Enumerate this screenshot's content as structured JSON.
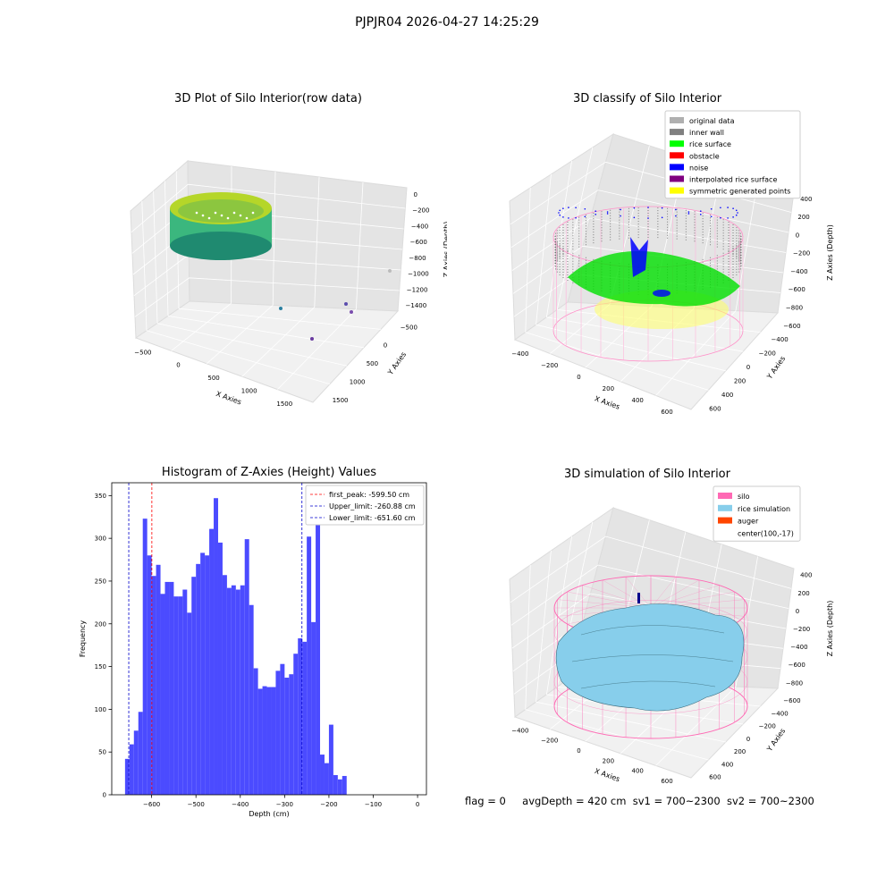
{
  "suptitle": "PJPJR04 2026-04-27 14:25:29",
  "footer": {
    "flag": "flag = 0",
    "avg": "avgDepth = 420 cm",
    "sv1": "sv1 = 700~2300",
    "sv2": "sv2 = 700~2300"
  },
  "colors": {
    "histogram": "#4b4bff",
    "silo": "#ff69b4",
    "rice": "#87ceeb",
    "auger": "#ff4500"
  },
  "panel1": {
    "title": "3D Plot of Silo Interior(row data)",
    "xlabel": "X Axies",
    "ylabel": "Y Axies",
    "zlabel": "Z Axies (Depth)",
    "xticks": [
      "−500",
      "0",
      "500",
      "1000",
      "1500"
    ],
    "yticks": [
      "1500",
      "1000",
      "500",
      "0",
      "−500"
    ],
    "zticks": [
      "0",
      "−200",
      "−400",
      "−600",
      "−800",
      "−1000",
      "−1200",
      "−1400"
    ]
  },
  "panel2": {
    "title": "3D classify of Silo Interior",
    "xlabel": "X Axies",
    "ylabel": "Y Axies",
    "zlabel": "Z Axies (Depth)",
    "xticks": [
      "−400",
      "−200",
      "0",
      "200",
      "400",
      "600"
    ],
    "yticks": [
      "600",
      "400",
      "200",
      "0",
      "−200",
      "−400",
      "−600"
    ],
    "zticks": [
      "400",
      "200",
      "0",
      "−200",
      "−400",
      "−600",
      "−800"
    ],
    "legend": [
      {
        "label": "original data",
        "color": "#b0b0b0"
      },
      {
        "label": "inner wall",
        "color": "#808080"
      },
      {
        "label": "rice surface",
        "color": "#00ff00"
      },
      {
        "label": "obstacle",
        "color": "#ff0000"
      },
      {
        "label": "noise",
        "color": "#0000ff"
      },
      {
        "label": "interpolated rice surface",
        "color": "#800080"
      },
      {
        "label": "symmetric generated points",
        "color": "#ffff00"
      }
    ]
  },
  "panel4": {
    "title": "3D simulation of Silo Interior",
    "xlabel": "X Axies",
    "ylabel": "Y Axies",
    "zlabel": "Z Axies (Depth)",
    "xticks": [
      "−400",
      "−200",
      "0",
      "200",
      "400",
      "600"
    ],
    "yticks": [
      "600",
      "400",
      "200",
      "0",
      "−200",
      "−400",
      "−600"
    ],
    "zticks": [
      "400",
      "200",
      "0",
      "−200",
      "−400",
      "−600",
      "−800"
    ],
    "legend": [
      {
        "label": "silo",
        "color": "#ff69b4"
      },
      {
        "label": "rice simulation",
        "color": "#87ceeb"
      },
      {
        "label": "auger",
        "color": "#ff4500"
      },
      {
        "label": "center(100,-17)",
        "color": ""
      }
    ]
  },
  "chart_data": [
    {
      "type": "bar",
      "title": "Histogram of Z-Axies (Height) Values",
      "xlabel": "Depth (cm)",
      "ylabel": "Frequency",
      "xlim": [
        -690,
        20
      ],
      "ylim": [
        0,
        365
      ],
      "xticks": [
        -600,
        -500,
        -400,
        -300,
        -200,
        -100,
        0
      ],
      "yticks": [
        0,
        50,
        100,
        150,
        200,
        250,
        300,
        350
      ],
      "bin_start": -660,
      "bin_width": 10,
      "values": [
        42,
        59,
        75,
        97,
        323,
        280,
        256,
        269,
        235,
        249,
        249,
        232,
        232,
        240,
        213,
        255,
        270,
        283,
        280,
        311,
        347,
        295,
        257,
        242,
        245,
        240,
        245,
        299,
        222,
        148,
        124,
        127,
        126,
        126,
        145,
        153,
        137,
        141,
        165,
        183,
        179,
        302,
        202,
        338,
        47,
        37,
        82,
        23,
        18,
        22
      ],
      "vlines": [
        {
          "label": "first_peak: -599.50 cm",
          "x": -599.5,
          "color": "#ff0000"
        },
        {
          "label": "Upper_limit: -260.88 cm",
          "x": -260.88,
          "color": "#0000cc"
        },
        {
          "label": "Lower_limit: -651.60 cm",
          "x": -651.6,
          "color": "#0000cc"
        }
      ],
      "grid": false,
      "legend_position": "upper right"
    }
  ]
}
